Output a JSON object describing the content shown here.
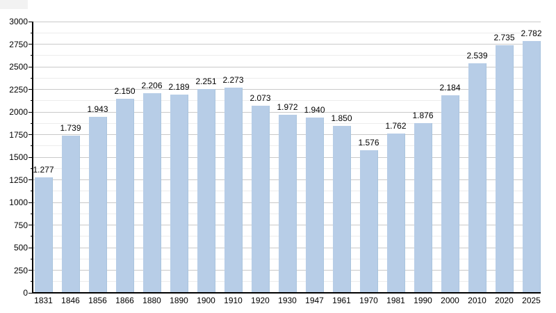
{
  "chart_data": {
    "type": "bar",
    "title": "",
    "xlabel": "",
    "ylabel": "",
    "categories": [
      "1831",
      "1846",
      "1856",
      "1866",
      "1880",
      "1890",
      "1900",
      "1910",
      "1920",
      "1930",
      "1947",
      "1961",
      "1970",
      "1981",
      "1990",
      "2000",
      "2010",
      "2020",
      "2025"
    ],
    "values": [
      1277,
      1739,
      1943,
      2150,
      2206,
      2189,
      2251,
      2273,
      2073,
      1972,
      1940,
      1850,
      1576,
      1762,
      1876,
      2184,
      2539,
      2735,
      2782
    ],
    "value_labels": [
      "1.277",
      "1.739",
      "1.943",
      "2.150",
      "2.206",
      "2.189",
      "2.251",
      "2.273",
      "2.073",
      "1.972",
      "1.940",
      "1.850",
      "1.576",
      "1.762",
      "1.876",
      "2.184",
      "2.539",
      "2.735",
      "2.782"
    ],
    "ylim": [
      0,
      3000
    ],
    "y_major_step": 250,
    "y_minor_step": 125,
    "y_tick_labels": [
      "0",
      "250",
      "500",
      "750",
      "1000",
      "1250",
      "1500",
      "1750",
      "2000",
      "2250",
      "2500",
      "2750",
      "3000"
    ],
    "grid": "on",
    "legend": "none",
    "colors": {
      "bar_fill": "#b7cde7",
      "bar_edge": "#a9c4de",
      "major_grid": "#c9c9c9",
      "minor_grid": "#ececec",
      "axis": "#000000",
      "text": "#000000"
    }
  }
}
